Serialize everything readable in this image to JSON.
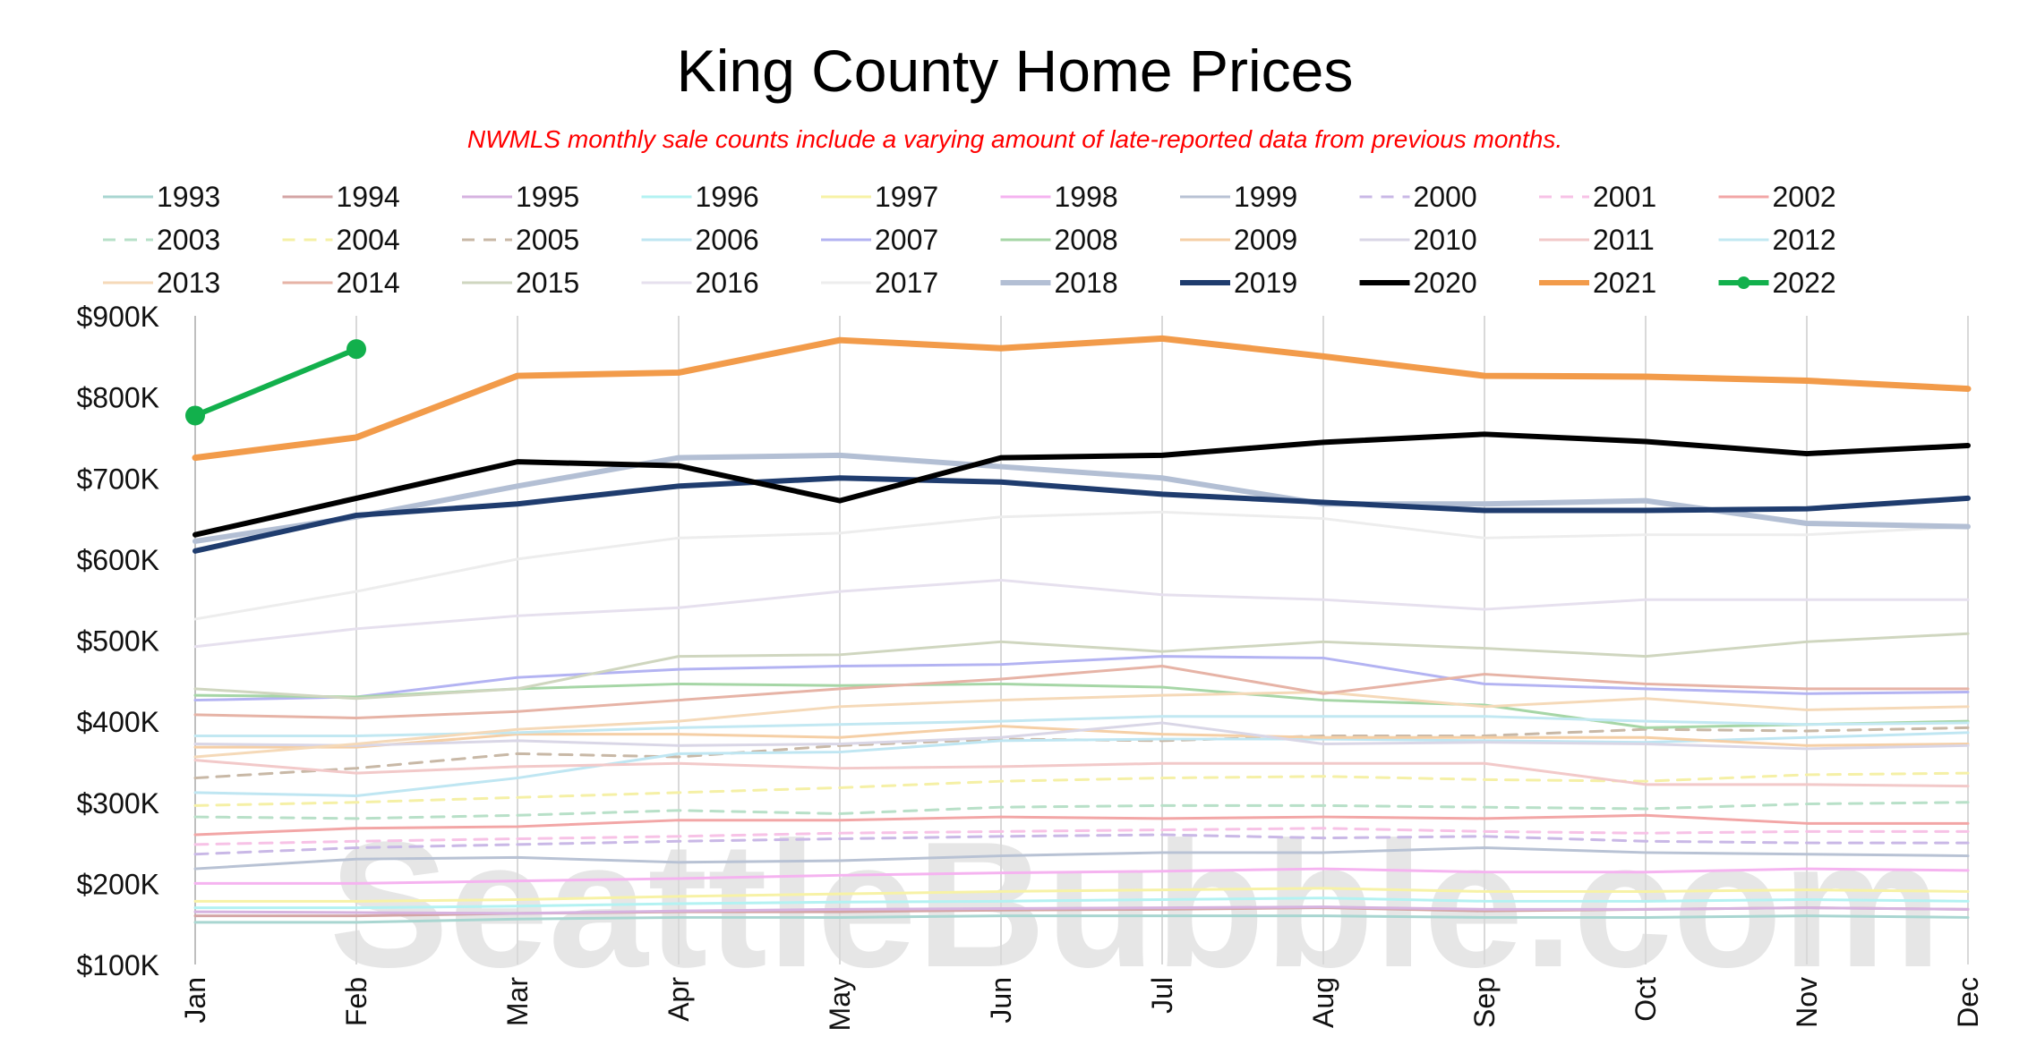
{
  "chart_data": {
    "type": "line",
    "title": "King County Home Prices",
    "subtitle": "NWMLS monthly sale counts include a varying amount of late-reported data from previous months.",
    "watermark": "SeattleBubble.com",
    "categories": [
      "Jan",
      "Feb",
      "Mar",
      "Apr",
      "May",
      "Jun",
      "Jul",
      "Aug",
      "Sep",
      "Oct",
      "Nov",
      "Dec"
    ],
    "y_ticks": [
      {
        "value": 100000,
        "label": "$100K"
      },
      {
        "value": 200000,
        "label": "$200K"
      },
      {
        "value": 300000,
        "label": "$300K"
      },
      {
        "value": 400000,
        "label": "$400K"
      },
      {
        "value": 500000,
        "label": "$500K"
      },
      {
        "value": 600000,
        "label": "$600K"
      },
      {
        "value": 700000,
        "label": "$700K"
      },
      {
        "value": 800000,
        "label": "$800K"
      },
      {
        "value": 900000,
        "label": "$900K"
      }
    ],
    "ylim": [
      100000,
      900000
    ],
    "grid": "x-only",
    "legend_position": "top",
    "series": [
      {
        "name": "1993",
        "color": "#a9d6d1",
        "style": "solid",
        "values": [
          152000,
          152000,
          156000,
          158000,
          158000,
          160000,
          160000,
          160000,
          158000,
          158000,
          160000,
          158000
        ]
      },
      {
        "name": "1994",
        "color": "#d4a5a5",
        "style": "solid",
        "values": [
          160000,
          160000,
          163000,
          165000,
          165000,
          167000,
          168000,
          170000,
          166000,
          168000,
          170000,
          168000
        ]
      },
      {
        "name": "1995",
        "color": "#d6b3e0",
        "style": "solid",
        "values": [
          165000,
          164000,
          163000,
          166000,
          168000,
          169000,
          170000,
          171000,
          168000,
          168000,
          170000,
          168000
        ]
      },
      {
        "name": "1996",
        "color": "#b3f2f2",
        "style": "solid",
        "values": [
          170000,
          170000,
          172000,
          175000,
          177000,
          178000,
          180000,
          182000,
          178000,
          178000,
          180000,
          178000
        ]
      },
      {
        "name": "1997",
        "color": "#f7f2a6",
        "style": "solid",
        "values": [
          178000,
          178000,
          180000,
          184000,
          187000,
          190000,
          192000,
          194000,
          190000,
          190000,
          192000,
          190000
        ]
      },
      {
        "name": "1998",
        "color": "#f5b3f0",
        "style": "solid",
        "values": [
          200000,
          200000,
          203000,
          206000,
          210000,
          213000,
          215000,
          218000,
          214000,
          214000,
          218000,
          216000
        ]
      },
      {
        "name": "1999",
        "color": "#b8c2d4",
        "style": "solid",
        "values": [
          218000,
          230000,
          232000,
          226000,
          228000,
          234000,
          238000,
          238000,
          244000,
          238000,
          236000,
          234000
        ]
      },
      {
        "name": "2000",
        "color": "#c9b8e6",
        "style": "dashed",
        "values": [
          236000,
          244000,
          248000,
          252000,
          255000,
          258000,
          260000,
          256000,
          258000,
          252000,
          250000,
          250000
        ]
      },
      {
        "name": "2001",
        "color": "#f7c2e6",
        "style": "dashed",
        "values": [
          248000,
          252000,
          255000,
          258000,
          262000,
          264000,
          266000,
          268000,
          264000,
          262000,
          264000,
          264000
        ]
      },
      {
        "name": "2002",
        "color": "#f2a6a6",
        "style": "solid",
        "values": [
          260000,
          268000,
          270000,
          278000,
          278000,
          282000,
          280000,
          282000,
          280000,
          284000,
          274000,
          274000
        ]
      },
      {
        "name": "2003",
        "color": "#b8e0c8",
        "style": "dashed",
        "values": [
          282000,
          280000,
          284000,
          290000,
          286000,
          294000,
          296000,
          296000,
          294000,
          292000,
          298000,
          300000
        ]
      },
      {
        "name": "2004",
        "color": "#f5f0a6",
        "style": "dashed",
        "values": [
          296000,
          300000,
          306000,
          312000,
          318000,
          326000,
          330000,
          332000,
          328000,
          326000,
          334000,
          336000
        ]
      },
      {
        "name": "2005",
        "color": "#c8b8a6",
        "style": "dashed",
        "values": [
          330000,
          342000,
          360000,
          356000,
          370000,
          378000,
          376000,
          382000,
          382000,
          390000,
          388000,
          392000
        ]
      },
      {
        "name": "2006",
        "color": "#bfe6f2",
        "style": "solid",
        "values": [
          312000,
          308000,
          330000,
          360000,
          362000,
          376000,
          378000,
          378000,
          376000,
          374000,
          380000,
          386000
        ]
      },
      {
        "name": "2007",
        "color": "#b3b3f2",
        "style": "solid",
        "values": [
          426000,
          430000,
          454000,
          464000,
          468000,
          470000,
          480000,
          478000,
          446000,
          440000,
          434000,
          436000
        ]
      },
      {
        "name": "2008",
        "color": "#a6d6a6",
        "style": "solid",
        "values": [
          432000,
          430000,
          440000,
          446000,
          444000,
          446000,
          442000,
          426000,
          420000,
          392000,
          396000,
          400000
        ]
      },
      {
        "name": "2009",
        "color": "#f5cfa6",
        "style": "solid",
        "values": [
          368000,
          368000,
          384000,
          384000,
          380000,
          394000,
          384000,
          380000,
          380000,
          380000,
          370000,
          372000
        ]
      },
      {
        "name": "2010",
        "color": "#d9d6e6",
        "style": "solid",
        "values": [
          372000,
          370000,
          376000,
          370000,
          372000,
          380000,
          398000,
          372000,
          374000,
          372000,
          366000,
          370000
        ]
      },
      {
        "name": "2011",
        "color": "#f2c9c9",
        "style": "solid",
        "values": [
          352000,
          336000,
          344000,
          348000,
          342000,
          344000,
          348000,
          348000,
          348000,
          322000,
          322000,
          320000
        ]
      },
      {
        "name": "2012",
        "color": "#c2e8f2",
        "style": "solid",
        "values": [
          382000,
          382000,
          386000,
          392000,
          396000,
          400000,
          406000,
          406000,
          406000,
          400000,
          396000,
          398000
        ]
      },
      {
        "name": "2013",
        "color": "#f5d9b8",
        "style": "solid",
        "values": [
          356000,
          372000,
          390000,
          400000,
          418000,
          426000,
          432000,
          436000,
          418000,
          428000,
          414000,
          418000
        ]
      },
      {
        "name": "2014",
        "color": "#e6b3a6",
        "style": "solid",
        "values": [
          408000,
          404000,
          412000,
          426000,
          440000,
          452000,
          468000,
          434000,
          458000,
          446000,
          440000,
          440000
        ]
      },
      {
        "name": "2015",
        "color": "#cfd6bf",
        "style": "solid",
        "values": [
          440000,
          428000,
          440000,
          480000,
          482000,
          498000,
          486000,
          498000,
          490000,
          480000,
          498000,
          508000
        ]
      },
      {
        "name": "2016",
        "color": "#e6e0ee",
        "style": "solid",
        "values": [
          492000,
          514000,
          530000,
          540000,
          560000,
          574000,
          556000,
          550000,
          538000,
          550000,
          550000,
          550000
        ]
      },
      {
        "name": "2017",
        "color": "#ededed",
        "style": "solid",
        "values": [
          526000,
          560000,
          600000,
          626000,
          632000,
          652000,
          658000,
          650000,
          626000,
          630000,
          630000,
          640000
        ]
      },
      {
        "name": "2018",
        "color": "#b3bfd4",
        "style": "solid",
        "width": 6,
        "values": [
          622000,
          652000,
          690000,
          725000,
          728000,
          714000,
          700000,
          668000,
          668000,
          672000,
          644000,
          640000
        ]
      },
      {
        "name": "2019",
        "color": "#1f3c6e",
        "style": "solid",
        "width": 6,
        "values": [
          610000,
          654000,
          668000,
          690000,
          700000,
          695000,
          680000,
          670000,
          660000,
          660000,
          662000,
          675000
        ]
      },
      {
        "name": "2020",
        "color": "#000000",
        "style": "solid",
        "width": 6,
        "values": [
          630000,
          675000,
          720000,
          715000,
          672000,
          725000,
          728000,
          744000,
          754000,
          745000,
          730000,
          740000
        ]
      },
      {
        "name": "2021",
        "color": "#f29b4a",
        "style": "solid",
        "width": 7,
        "values": [
          725000,
          750000,
          826000,
          830000,
          870000,
          860000,
          872000,
          850000,
          826000,
          825000,
          820000,
          810000
        ]
      },
      {
        "name": "2022",
        "color": "#12b04c",
        "style": "solid-markers",
        "width": 6,
        "values": [
          777000,
          859000,
          null,
          null,
          null,
          null,
          null,
          null,
          null,
          null,
          null,
          null
        ]
      }
    ]
  }
}
